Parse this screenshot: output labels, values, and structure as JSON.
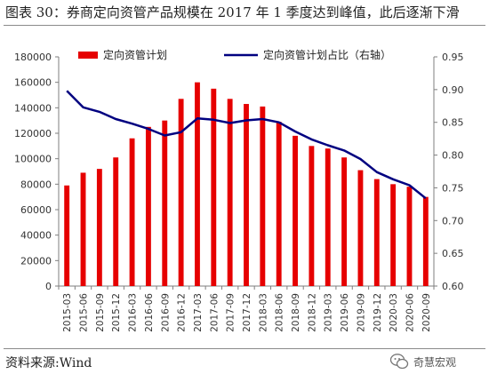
{
  "figure": {
    "title": "图表 30：券商定向资管产品规模在 2017 年 1 季度达到峰值，此后逐渐下滑",
    "source": "资料来源:Wind",
    "watermark": "奇慧宏观"
  },
  "chart_data": {
    "type": "bar+line",
    "title": "",
    "categories": [
      "2015-03",
      "2015-06",
      "2015-09",
      "2015-12",
      "2016-03",
      "2016-06",
      "2016-09",
      "2016-12",
      "2017-03",
      "2017-06",
      "2017-09",
      "2017-12",
      "2018-03",
      "2018-06",
      "2018-09",
      "2018-12",
      "2019-03",
      "2019-06",
      "2019-09",
      "2019-12",
      "2020-03",
      "2020-06",
      "2020-09"
    ],
    "series": [
      {
        "name": "定向资管计划",
        "type": "bar",
        "axis": "left",
        "color": "#e60000",
        "values": [
          79000,
          89000,
          92000,
          101000,
          116000,
          125000,
          130000,
          147000,
          160000,
          155000,
          147000,
          143000,
          141000,
          129000,
          118000,
          110000,
          108000,
          101000,
          91000,
          84000,
          80000,
          78000,
          70000
        ]
      },
      {
        "name": "定向资管计划占比（右轴）",
        "type": "line",
        "axis": "right",
        "color": "#000080",
        "values": [
          0.898,
          0.873,
          0.866,
          0.855,
          0.848,
          0.84,
          0.83,
          0.835,
          0.856,
          0.854,
          0.849,
          0.853,
          0.855,
          0.85,
          0.836,
          0.824,
          0.815,
          0.807,
          0.794,
          0.774,
          0.763,
          0.754,
          0.734
        ]
      }
    ],
    "yaxis_left": {
      "min": 0,
      "max": 180000,
      "step": 20000,
      "ticks": [
        "0",
        "20000",
        "40000",
        "60000",
        "80000",
        "100000",
        "120000",
        "140000",
        "160000",
        "180000"
      ]
    },
    "yaxis_right": {
      "min": 0.6,
      "max": 0.95,
      "step": 0.05,
      "ticks": [
        "0.60",
        "0.65",
        "0.70",
        "0.75",
        "0.80",
        "0.85",
        "0.90",
        "0.95"
      ]
    },
    "xlabel": "",
    "ylabel": "",
    "grid": false,
    "legend": "top"
  }
}
